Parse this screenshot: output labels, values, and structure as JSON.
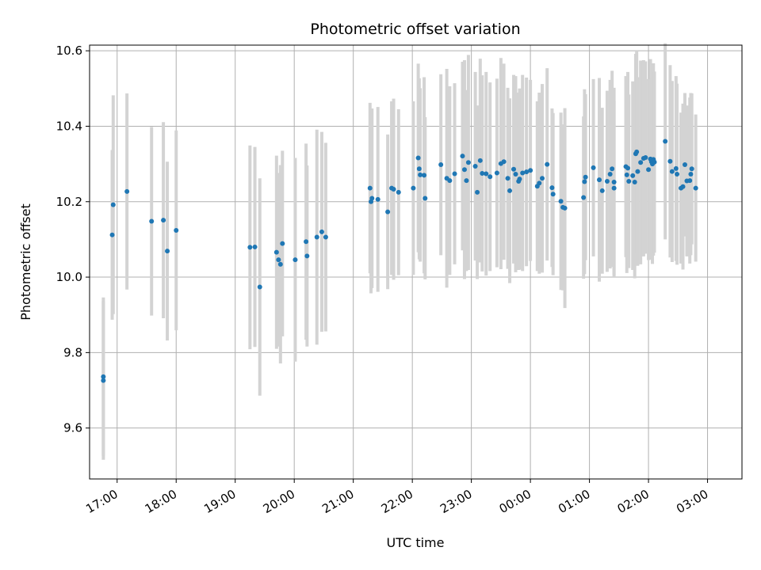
{
  "chart_data": {
    "type": "scatter",
    "title": "Photometric offset variation",
    "xlabel": "UTC time",
    "ylabel": "Photometric offset",
    "x_unit": "UTC hours",
    "xlim": [
      "16:32",
      "03:35"
    ],
    "ylim": [
      9.465,
      10.615
    ],
    "xticks": [
      {
        "t": "17:00",
        "label": "17:00"
      },
      {
        "t": "18:00",
        "label": "18:00"
      },
      {
        "t": "19:00",
        "label": "19:00"
      },
      {
        "t": "20:00",
        "label": "20:00"
      },
      {
        "t": "21:00",
        "label": "21:00"
      },
      {
        "t": "22:00",
        "label": "22:00"
      },
      {
        "t": "23:00",
        "label": "23:00"
      },
      {
        "t": "00:00",
        "label": "00:00"
      },
      {
        "t": "01:00",
        "label": "01:00"
      },
      {
        "t": "02:00",
        "label": "02:00"
      },
      {
        "t": "03:00",
        "label": "03:00"
      }
    ],
    "yticks": [
      {
        "v": 9.6,
        "label": "9.6"
      },
      {
        "v": 9.8,
        "label": "9.8"
      },
      {
        "v": 10.0,
        "label": "10.0"
      },
      {
        "v": 10.2,
        "label": "10.2"
      },
      {
        "v": 10.4,
        "label": "10.4"
      },
      {
        "v": 10.6,
        "label": "10.6"
      }
    ],
    "grid": true,
    "point_color": "#1f77b4",
    "errorbar_color": "#d3d3d3",
    "points": [
      {
        "t": "16:46",
        "y": 9.726,
        "err": 0.21
      },
      {
        "t": "16:46",
        "y": 9.736,
        "err": 0.21
      },
      {
        "t": "16:55",
        "y": 10.112,
        "err": 0.225
      },
      {
        "t": "16:56",
        "y": 10.192,
        "err": 0.29
      },
      {
        "t": "17:10",
        "y": 10.227,
        "err": 0.26
      },
      {
        "t": "17:35",
        "y": 10.148,
        "err": 0.25
      },
      {
        "t": "17:47",
        "y": 10.151,
        "err": 0.26
      },
      {
        "t": "17:51",
        "y": 10.069,
        "err": 0.237
      },
      {
        "t": "18:00",
        "y": 10.124,
        "err": 0.265
      },
      {
        "t": "19:15",
        "y": 10.079,
        "err": 0.27
      },
      {
        "t": "19:20",
        "y": 10.08,
        "err": 0.265
      },
      {
        "t": "19:25",
        "y": 9.974,
        "err": 0.288
      },
      {
        "t": "19:42",
        "y": 10.066,
        "err": 0.256
      },
      {
        "t": "19:44",
        "y": 10.046,
        "err": 0.23
      },
      {
        "t": "19:46",
        "y": 10.034,
        "err": 0.263
      },
      {
        "t": "19:48",
        "y": 10.089,
        "err": 0.246
      },
      {
        "t": "20:01",
        "y": 10.046,
        "err": 0.27
      },
      {
        "t": "20:12",
        "y": 10.094,
        "err": 0.26
      },
      {
        "t": "20:13",
        "y": 10.056,
        "err": 0.24
      },
      {
        "t": "20:23",
        "y": 10.106,
        "err": 0.285
      },
      {
        "t": "20:28",
        "y": 10.12,
        "err": 0.265
      },
      {
        "t": "20:32",
        "y": 10.106,
        "err": 0.25
      },
      {
        "t": "21:17",
        "y": 10.236,
        "err": 0.226
      },
      {
        "t": "21:18",
        "y": 10.2,
        "err": 0.243
      },
      {
        "t": "21:19",
        "y": 10.209,
        "err": 0.238
      },
      {
        "t": "21:25",
        "y": 10.206,
        "err": 0.245
      },
      {
        "t": "21:35",
        "y": 10.173,
        "err": 0.205
      },
      {
        "t": "21:39",
        "y": 10.236,
        "err": 0.23
      },
      {
        "t": "21:41",
        "y": 10.233,
        "err": 0.24
      },
      {
        "t": "21:46",
        "y": 10.225,
        "err": 0.22
      },
      {
        "t": "22:01",
        "y": 10.236,
        "err": 0.23
      },
      {
        "t": "22:06",
        "y": 10.316,
        "err": 0.25
      },
      {
        "t": "22:07",
        "y": 10.287,
        "err": 0.24
      },
      {
        "t": "22:08",
        "y": 10.271,
        "err": 0.23
      },
      {
        "t": "22:12",
        "y": 10.27,
        "err": 0.26
      },
      {
        "t": "22:13",
        "y": 10.209,
        "err": 0.215
      },
      {
        "t": "22:29",
        "y": 10.298,
        "err": 0.24
      },
      {
        "t": "22:35",
        "y": 10.262,
        "err": 0.29
      },
      {
        "t": "22:38",
        "y": 10.256,
        "err": 0.25
      },
      {
        "t": "22:43",
        "y": 10.274,
        "err": 0.24
      },
      {
        "t": "22:51",
        "y": 10.321,
        "err": 0.25
      },
      {
        "t": "22:53",
        "y": 10.285,
        "err": 0.29
      },
      {
        "t": "22:55",
        "y": 10.256,
        "err": 0.24
      },
      {
        "t": "22:57",
        "y": 10.304,
        "err": 0.285
      },
      {
        "t": "23:04",
        "y": 10.294,
        "err": 0.25
      },
      {
        "t": "23:06",
        "y": 10.225,
        "err": 0.23
      },
      {
        "t": "23:09",
        "y": 10.309,
        "err": 0.27
      },
      {
        "t": "23:11",
        "y": 10.275,
        "err": 0.26
      },
      {
        "t": "23:15",
        "y": 10.274,
        "err": 0.27
      },
      {
        "t": "23:19",
        "y": 10.266,
        "err": 0.25
      },
      {
        "t": "23:26",
        "y": 10.276,
        "err": 0.25
      },
      {
        "t": "23:30",
        "y": 10.301,
        "err": 0.28
      },
      {
        "t": "23:33",
        "y": 10.306,
        "err": 0.26
      },
      {
        "t": "23:37",
        "y": 10.262,
        "err": 0.24
      },
      {
        "t": "23:39",
        "y": 10.229,
        "err": 0.245
      },
      {
        "t": "23:43",
        "y": 10.286,
        "err": 0.25
      },
      {
        "t": "23:45",
        "y": 10.273,
        "err": 0.26
      },
      {
        "t": "23:48",
        "y": 10.254,
        "err": 0.235
      },
      {
        "t": "23:49",
        "y": 10.26,
        "err": 0.24
      },
      {
        "t": "23:52",
        "y": 10.276,
        "err": 0.26
      },
      {
        "t": "23:56",
        "y": 10.279,
        "err": 0.25
      },
      {
        "t": "00:00",
        "y": 10.283,
        "err": 0.24
      },
      {
        "t": "00:07",
        "y": 10.241,
        "err": 0.225
      },
      {
        "t": "00:09",
        "y": 10.249,
        "err": 0.24
      },
      {
        "t": "00:12",
        "y": 10.262,
        "err": 0.25
      },
      {
        "t": "00:17",
        "y": 10.299,
        "err": 0.255
      },
      {
        "t": "00:22",
        "y": 10.237,
        "err": 0.21
      },
      {
        "t": "00:23",
        "y": 10.22,
        "err": 0.215
      },
      {
        "t": "00:31",
        "y": 10.201,
        "err": 0.235
      },
      {
        "t": "00:33",
        "y": 10.185,
        "err": 0.22
      },
      {
        "t": "00:35",
        "y": 10.183,
        "err": 0.265
      },
      {
        "t": "00:54",
        "y": 10.211,
        "err": 0.215
      },
      {
        "t": "00:55",
        "y": 10.253,
        "err": 0.245
      },
      {
        "t": "00:56",
        "y": 10.265,
        "err": 0.22
      },
      {
        "t": "01:04",
        "y": 10.29,
        "err": 0.235
      },
      {
        "t": "01:10",
        "y": 10.258,
        "err": 0.27
      },
      {
        "t": "01:13",
        "y": 10.229,
        "err": 0.22
      },
      {
        "t": "01:18",
        "y": 10.254,
        "err": 0.24
      },
      {
        "t": "01:21",
        "y": 10.273,
        "err": 0.25
      },
      {
        "t": "01:23",
        "y": 10.287,
        "err": 0.26
      },
      {
        "t": "01:25",
        "y": 10.236,
        "err": 0.23
      },
      {
        "t": "01:25",
        "y": 10.252,
        "err": 0.25
      },
      {
        "t": "01:37",
        "y": 10.293,
        "err": 0.24
      },
      {
        "t": "01:38",
        "y": 10.271,
        "err": 0.26
      },
      {
        "t": "01:39",
        "y": 10.289,
        "err": 0.255
      },
      {
        "t": "01:40",
        "y": 10.254,
        "err": 0.23
      },
      {
        "t": "01:44",
        "y": 10.269,
        "err": 0.25
      },
      {
        "t": "01:46",
        "y": 10.252,
        "err": 0.255
      },
      {
        "t": "01:47",
        "y": 10.327,
        "err": 0.265
      },
      {
        "t": "01:48",
        "y": 10.332,
        "err": 0.27
      },
      {
        "t": "01:49",
        "y": 10.28,
        "err": 0.25
      },
      {
        "t": "01:52",
        "y": 10.304,
        "err": 0.27
      },
      {
        "t": "01:55",
        "y": 10.315,
        "err": 0.26
      },
      {
        "t": "01:57",
        "y": 10.317,
        "err": 0.255
      },
      {
        "t": "02:00",
        "y": 10.285,
        "err": 0.24
      },
      {
        "t": "02:02",
        "y": 10.313,
        "err": 0.265
      },
      {
        "t": "02:03",
        "y": 10.306,
        "err": 0.26
      },
      {
        "t": "02:04",
        "y": 10.3,
        "err": 0.265
      },
      {
        "t": "02:05",
        "y": 10.312,
        "err": 0.255
      },
      {
        "t": "02:06",
        "y": 10.305,
        "err": 0.24
      },
      {
        "t": "02:17",
        "y": 10.36,
        "err": 0.26
      },
      {
        "t": "02:22",
        "y": 10.307,
        "err": 0.255
      },
      {
        "t": "02:24",
        "y": 10.28,
        "err": 0.24
      },
      {
        "t": "02:28",
        "y": 10.288,
        "err": 0.245
      },
      {
        "t": "02:29",
        "y": 10.273,
        "err": 0.24
      },
      {
        "t": "02:33",
        "y": 10.236,
        "err": 0.2
      },
      {
        "t": "02:35",
        "y": 10.24,
        "err": 0.22
      },
      {
        "t": "02:37",
        "y": 10.298,
        "err": 0.19
      },
      {
        "t": "02:39",
        "y": 10.255,
        "err": 0.2
      },
      {
        "t": "02:42",
        "y": 10.256,
        "err": 0.22
      },
      {
        "t": "02:43",
        "y": 10.273,
        "err": 0.215
      },
      {
        "t": "02:44",
        "y": 10.287,
        "err": 0.2
      },
      {
        "t": "02:48",
        "y": 10.236,
        "err": 0.195
      }
    ]
  }
}
